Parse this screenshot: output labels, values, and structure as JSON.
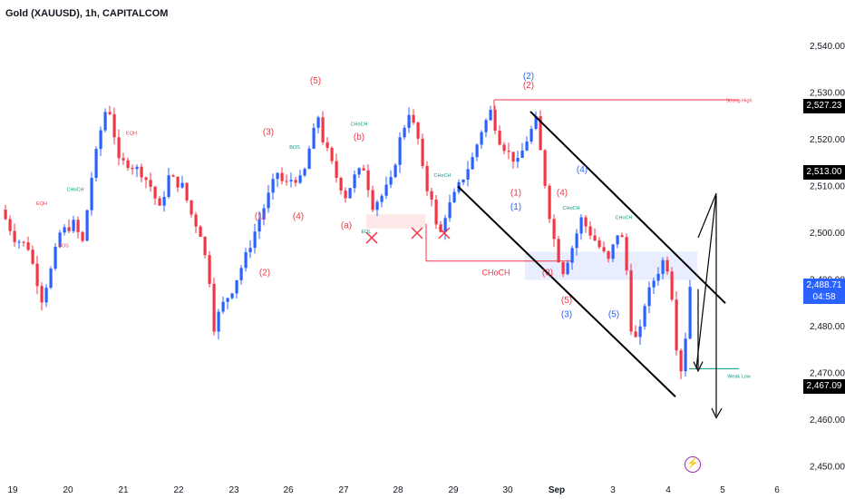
{
  "header": {
    "title": "Gold (XAUUSD), 1h, CAPITALCOM"
  },
  "colors": {
    "bull": "#2962ff",
    "bear": "#f23645",
    "accent": "#089981",
    "trend": "#000000"
  },
  "price_tags": [
    {
      "label": "2,527.23",
      "value": 2527.23,
      "bg": "#000000"
    },
    {
      "label": "2,513.00",
      "value": 2513.0,
      "bg": "#000000"
    },
    {
      "label": "2,467.09",
      "value": 2467.09,
      "bg": "#000000"
    }
  ],
  "live": {
    "price": "2,488.71",
    "countdown": "04:58",
    "value": 2488.71
  },
  "icons": {
    "alert": "lightning-bolt-icon"
  },
  "chart_data": {
    "type": "candlestick",
    "title": "Gold (XAUUSD), 1h, CAPITALCOM",
    "ylim": [
      2447,
      2545
    ],
    "y_ticks": [
      2450,
      2460,
      2470,
      2480,
      2490,
      2500,
      2510,
      2520,
      2530,
      2540
    ],
    "y_tick_labels": [
      "2,450.00",
      "2,460.00",
      "2,470.00",
      "2,480.00",
      "2,490.00",
      "2,500.00",
      "2,510.00",
      "2,520.00",
      "2,530.00",
      "2,540.00"
    ],
    "x_ticks": [
      "19",
      "20",
      "21",
      "22",
      "23",
      "26",
      "27",
      "28",
      "29",
      "30",
      "Sep",
      "3",
      "4",
      "5",
      "6"
    ],
    "close_path": [
      [
        0,
        2505
      ],
      [
        3,
        2499
      ],
      [
        6,
        2497
      ],
      [
        9,
        2486
      ],
      [
        11,
        2492
      ],
      [
        13,
        2500
      ],
      [
        16,
        2502
      ],
      [
        18,
        2498
      ],
      [
        20,
        2512
      ],
      [
        22,
        2522
      ],
      [
        23.5,
        2528
      ],
      [
        24.5,
        2524
      ],
      [
        26,
        2515
      ],
      [
        28,
        2515
      ],
      [
        31,
        2513
      ],
      [
        33,
        2510
      ],
      [
        35,
        2505
      ],
      [
        37,
        2512
      ],
      [
        40,
        2510
      ],
      [
        42,
        2504
      ],
      [
        44,
        2500
      ],
      [
        46,
        2490
      ],
      [
        47,
        2480
      ],
      [
        48.5,
        2484
      ],
      [
        51,
        2488
      ],
      [
        54,
        2495
      ],
      [
        57,
        2503
      ],
      [
        59,
        2508
      ],
      [
        61,
        2513
      ],
      [
        62.5,
        2510
      ],
      [
        64.5,
        2512
      ],
      [
        66.5,
        2511
      ],
      [
        68,
        2518
      ],
      [
        70,
        2525
      ],
      [
        71,
        2520
      ],
      [
        72.5,
        2516
      ],
      [
        74,
        2512
      ],
      [
        76,
        2508
      ],
      [
        78,
        2512
      ],
      [
        80,
        2514
      ],
      [
        82,
        2506
      ],
      [
        84,
        2508
      ],
      [
        86,
        2511
      ],
      [
        88,
        2520
      ],
      [
        90,
        2526
      ],
      [
        92,
        2520
      ],
      [
        93.5,
        2510
      ],
      [
        95,
        2508
      ],
      [
        96.5,
        2498
      ],
      [
        98,
        2504
      ],
      [
        100,
        2508
      ],
      [
        102,
        2512
      ],
      [
        104,
        2516
      ],
      [
        106,
        2522
      ],
      [
        108,
        2526
      ],
      [
        110,
        2520
      ],
      [
        112,
        2517
      ],
      [
        114,
        2515
      ],
      [
        116,
        2520
      ],
      [
        118,
        2524
      ],
      [
        119.5,
        2514
      ],
      [
        121,
        2504
      ],
      [
        122.5,
        2496
      ],
      [
        124,
        2492
      ],
      [
        126,
        2497
      ],
      [
        128,
        2503
      ],
      [
        130,
        2500
      ],
      [
        132,
        2497
      ],
      [
        134,
        2494
      ],
      [
        136,
        2500
      ],
      [
        137.5,
        2498
      ],
      [
        139,
        2480
      ],
      [
        140.5,
        2476
      ],
      [
        142,
        2485
      ],
      [
        144,
        2490
      ],
      [
        146,
        2494
      ],
      [
        147.5,
        2492
      ],
      [
        149,
        2476
      ],
      [
        150,
        2471
      ],
      [
        151,
        2478
      ],
      [
        152,
        2488.71
      ]
    ],
    "candle_count": 152,
    "annotations": {
      "wave_labels": [
        {
          "text": "(5)",
          "x": 348,
          "price": 2532
        },
        {
          "text": "(3)",
          "x": 296,
          "price": 2521
        },
        {
          "text": "(b)",
          "x": 396,
          "price": 2520
        },
        {
          "text": "(4)",
          "x": 329,
          "price": 2503
        },
        {
          "text": "(1)",
          "x": 287,
          "price": 2503
        },
        {
          "text": "(2)",
          "x": 292,
          "price": 2491
        },
        {
          "text": "(a)",
          "x": 382,
          "price": 2501
        },
        {
          "text": "(2)",
          "x": 583,
          "price": 2531
        },
        {
          "text": "(1)",
          "x": 569,
          "price": 2508
        },
        {
          "text": "(4)",
          "x": 620,
          "price": 2508
        },
        {
          "text": "(3)",
          "x": 604,
          "price": 2491
        },
        {
          "text": "(5)",
          "x": 625,
          "price": 2485
        },
        {
          "text": "(2)",
          "x": 583,
          "price": 2533,
          "blue": true
        },
        {
          "text": "(1)",
          "x": 569,
          "price": 2505,
          "blue": true
        },
        {
          "text": "(4)",
          "x": 642,
          "price": 2513,
          "blue": true
        },
        {
          "text": "(3)",
          "x": 625,
          "price": 2482,
          "blue": true
        },
        {
          "text": "(5)",
          "x": 677,
          "price": 2482,
          "blue": true
        }
      ],
      "small_labels": [
        "EQH",
        "EQH",
        "BOS",
        "BOS",
        "CHoCH",
        "CHoCH",
        "CHoCH",
        "EQL",
        "CHoCH",
        "CHoCH",
        "Strong High",
        "Weak Low"
      ],
      "choch_big": "CHoCH"
    }
  }
}
